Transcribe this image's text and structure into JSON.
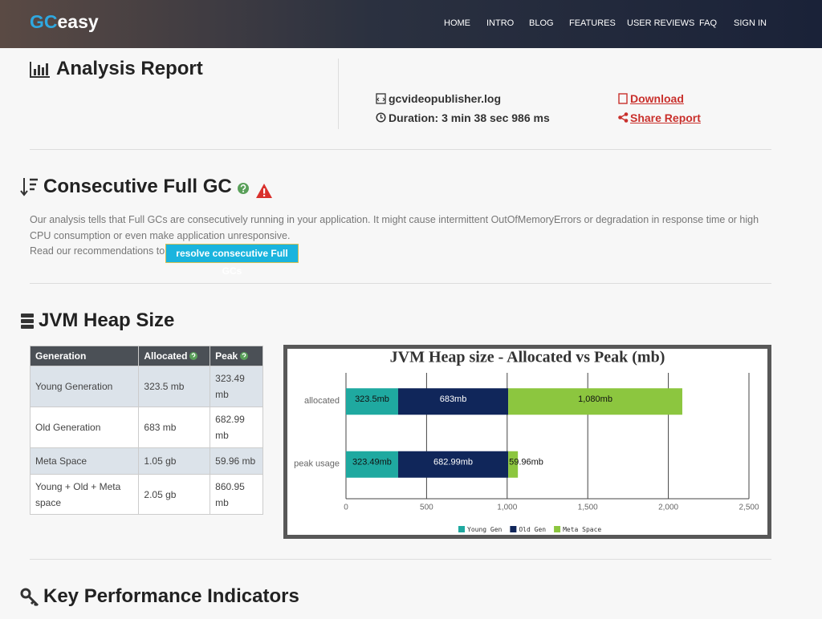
{
  "nav": {
    "logo_prefix": "GC",
    "logo_suffix": "easy",
    "items": [
      "HOME",
      "INTRO",
      "BLOG",
      "FEATURES",
      "USER REVIEWS",
      "FAQ",
      "SIGN IN"
    ]
  },
  "report": {
    "title": "Analysis Report",
    "file": "gcvideopublisher.log",
    "duration": "Duration: 3 min 38 sec 986 ms",
    "download": "Download",
    "share": "Share Report"
  },
  "consecutive": {
    "title": "Consecutive Full GC",
    "text": "Our analysis tells that Full GCs are consecutively running in your application. It might cause intermittent OutOfMemoryErrors or degradation in response time or high CPU consumption or even make application unresponsive.",
    "recommendation": "Read our recommendations to",
    "button": "resolve consecutive Full GCs"
  },
  "heap": {
    "title": "JVM Heap Size",
    "table": {
      "header": [
        "Generation",
        "Allocated",
        "Peak"
      ],
      "rows": [
        [
          "Young Generation",
          "323.5 mb",
          "323.49 mb"
        ],
        [
          "Old Generation",
          "683 mb",
          "682.99 mb"
        ],
        [
          "Meta Space",
          "1.05 gb",
          "59.96 mb"
        ],
        [
          "Young + Old + Meta space",
          "2.05 gb",
          "860.95 mb"
        ]
      ]
    }
  },
  "chart_data": {
    "type": "bar",
    "orientation": "horizontal",
    "stacked": true,
    "title": "JVM Heap size - Allocated vs Peak (mb)",
    "categories": [
      "allocated",
      "peak usage"
    ],
    "series": [
      {
        "name": "Young Gen",
        "color": "#1fa9a0",
        "values": [
          323.5,
          323.49
        ],
        "value_labels": [
          "323.5mb",
          "323.49mb"
        ]
      },
      {
        "name": "Old Gen",
        "color": "#10265a",
        "values": [
          683,
          682.99
        ],
        "value_labels": [
          "683mb",
          "682.99mb"
        ]
      },
      {
        "name": "Meta Space",
        "color": "#8cc63f",
        "values": [
          1080,
          59.96
        ],
        "value_labels": [
          "1,080mb",
          "59.96mb"
        ]
      }
    ],
    "xlim": [
      0,
      2500
    ],
    "xticks": [
      0,
      500,
      {
        "value": 1000,
        "label": "1,000"
      },
      {
        "value": 1500,
        "label": "1,500"
      },
      {
        "value": 2000,
        "label": "2,000"
      },
      {
        "value": 2500,
        "label": "2,500"
      }
    ],
    "grid": true,
    "legend": "bottom"
  },
  "kpi": {
    "title": "Key Performance Indicators"
  }
}
